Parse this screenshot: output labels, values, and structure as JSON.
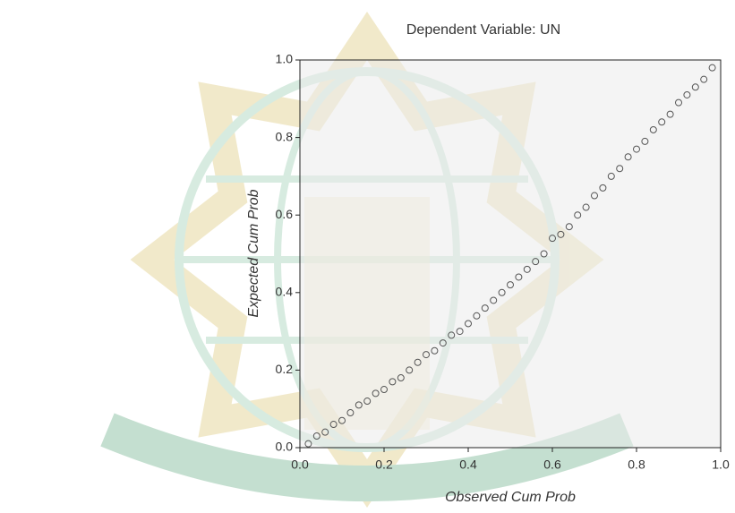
{
  "chart_data": {
    "type": "scatter",
    "title": "Dependent Variable: UN",
    "x_label": "Observed Cum Prob",
    "y_label": "Expected Cum Prob",
    "xlim": [
      0,
      1
    ],
    "ylim": [
      0,
      1
    ],
    "xticks": [
      {
        "value": 0,
        "label": "0.0"
      },
      {
        "value": 0.2,
        "label": "0.2"
      },
      {
        "value": 0.4,
        "label": "0.4"
      },
      {
        "value": 0.6,
        "label": "0.6"
      },
      {
        "value": 0.8,
        "label": "0.8"
      },
      {
        "value": 1,
        "label": "1.0"
      }
    ],
    "yticks": [
      {
        "value": 0,
        "label": "0.0"
      },
      {
        "value": 0.2,
        "label": "0.2"
      },
      {
        "value": 0.4,
        "label": "0.4"
      },
      {
        "value": 0.6,
        "label": "0.6"
      },
      {
        "value": 0.8,
        "label": "0.8"
      },
      {
        "value": 1,
        "label": "1.0"
      }
    ],
    "color": "#555555",
    "x": [
      0.02,
      0.04,
      0.06,
      0.08,
      0.1,
      0.12,
      0.14,
      0.16,
      0.18,
      0.2,
      0.22,
      0.24,
      0.26,
      0.28,
      0.3,
      0.32,
      0.34,
      0.36,
      0.38,
      0.4,
      0.42,
      0.44,
      0.46,
      0.48,
      0.5,
      0.52,
      0.54,
      0.56,
      0.58,
      0.6,
      0.62,
      0.64,
      0.66,
      0.68,
      0.7,
      0.72,
      0.74,
      0.76,
      0.78,
      0.8,
      0.82,
      0.84,
      0.86,
      0.88,
      0.9,
      0.92,
      0.94,
      0.96,
      0.98
    ],
    "y": [
      0.01,
      0.03,
      0.04,
      0.06,
      0.07,
      0.09,
      0.11,
      0.12,
      0.14,
      0.15,
      0.17,
      0.18,
      0.2,
      0.22,
      0.24,
      0.25,
      0.27,
      0.29,
      0.3,
      0.32,
      0.34,
      0.36,
      0.38,
      0.4,
      0.42,
      0.44,
      0.46,
      0.48,
      0.5,
      0.54,
      0.55,
      0.57,
      0.6,
      0.62,
      0.65,
      0.67,
      0.7,
      0.72,
      0.75,
      0.77,
      0.79,
      0.82,
      0.84,
      0.86,
      0.89,
      0.91,
      0.93,
      0.95,
      0.98
    ]
  }
}
